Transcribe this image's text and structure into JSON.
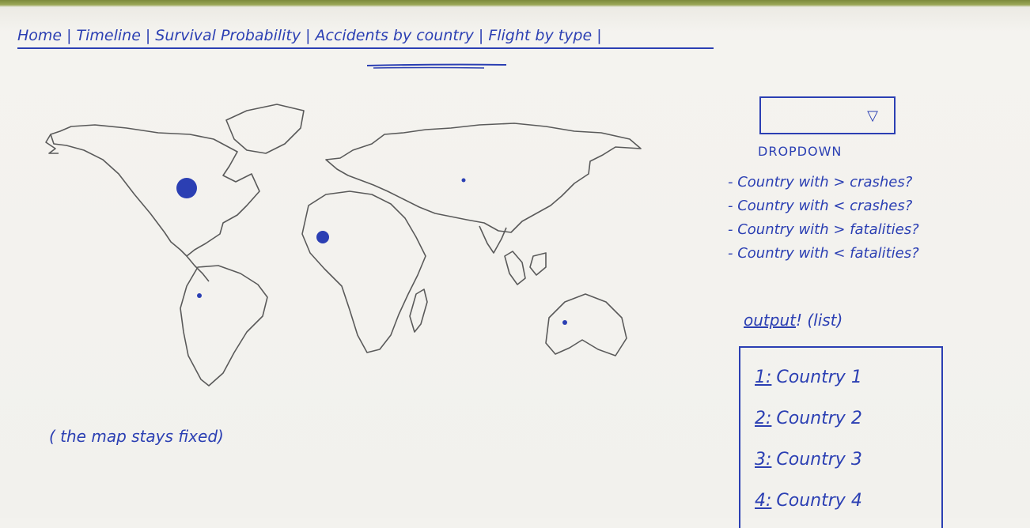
{
  "nav": {
    "items": [
      {
        "label": "Home"
      },
      {
        "label": "Timeline"
      },
      {
        "label": "Survival Probability"
      },
      {
        "label": "Accidents by country"
      },
      {
        "label": "Flight by type"
      }
    ],
    "separator": "|"
  },
  "map": {
    "caption": "( the map stays fixed)"
  },
  "dropdown": {
    "arrow": "▽",
    "title": "DROPDOWN",
    "options": [
      "- Country with > crashes?",
      "- Country with < crashes?",
      "- Country with > fatalities?",
      "- Country with < fatalities?"
    ]
  },
  "output": {
    "label": "output",
    "label_suffix": "! (list)",
    "items": [
      {
        "num": "1:",
        "name": "Country 1"
      },
      {
        "num": "2:",
        "name": "Country 2"
      },
      {
        "num": "3:",
        "name": "Country 3"
      },
      {
        "num": "4:",
        "name": "Country 4"
      }
    ]
  },
  "colors": {
    "ink": "#2b3fb3",
    "map_outline": "#5a5a5a",
    "paper": "#f3f2ee"
  }
}
